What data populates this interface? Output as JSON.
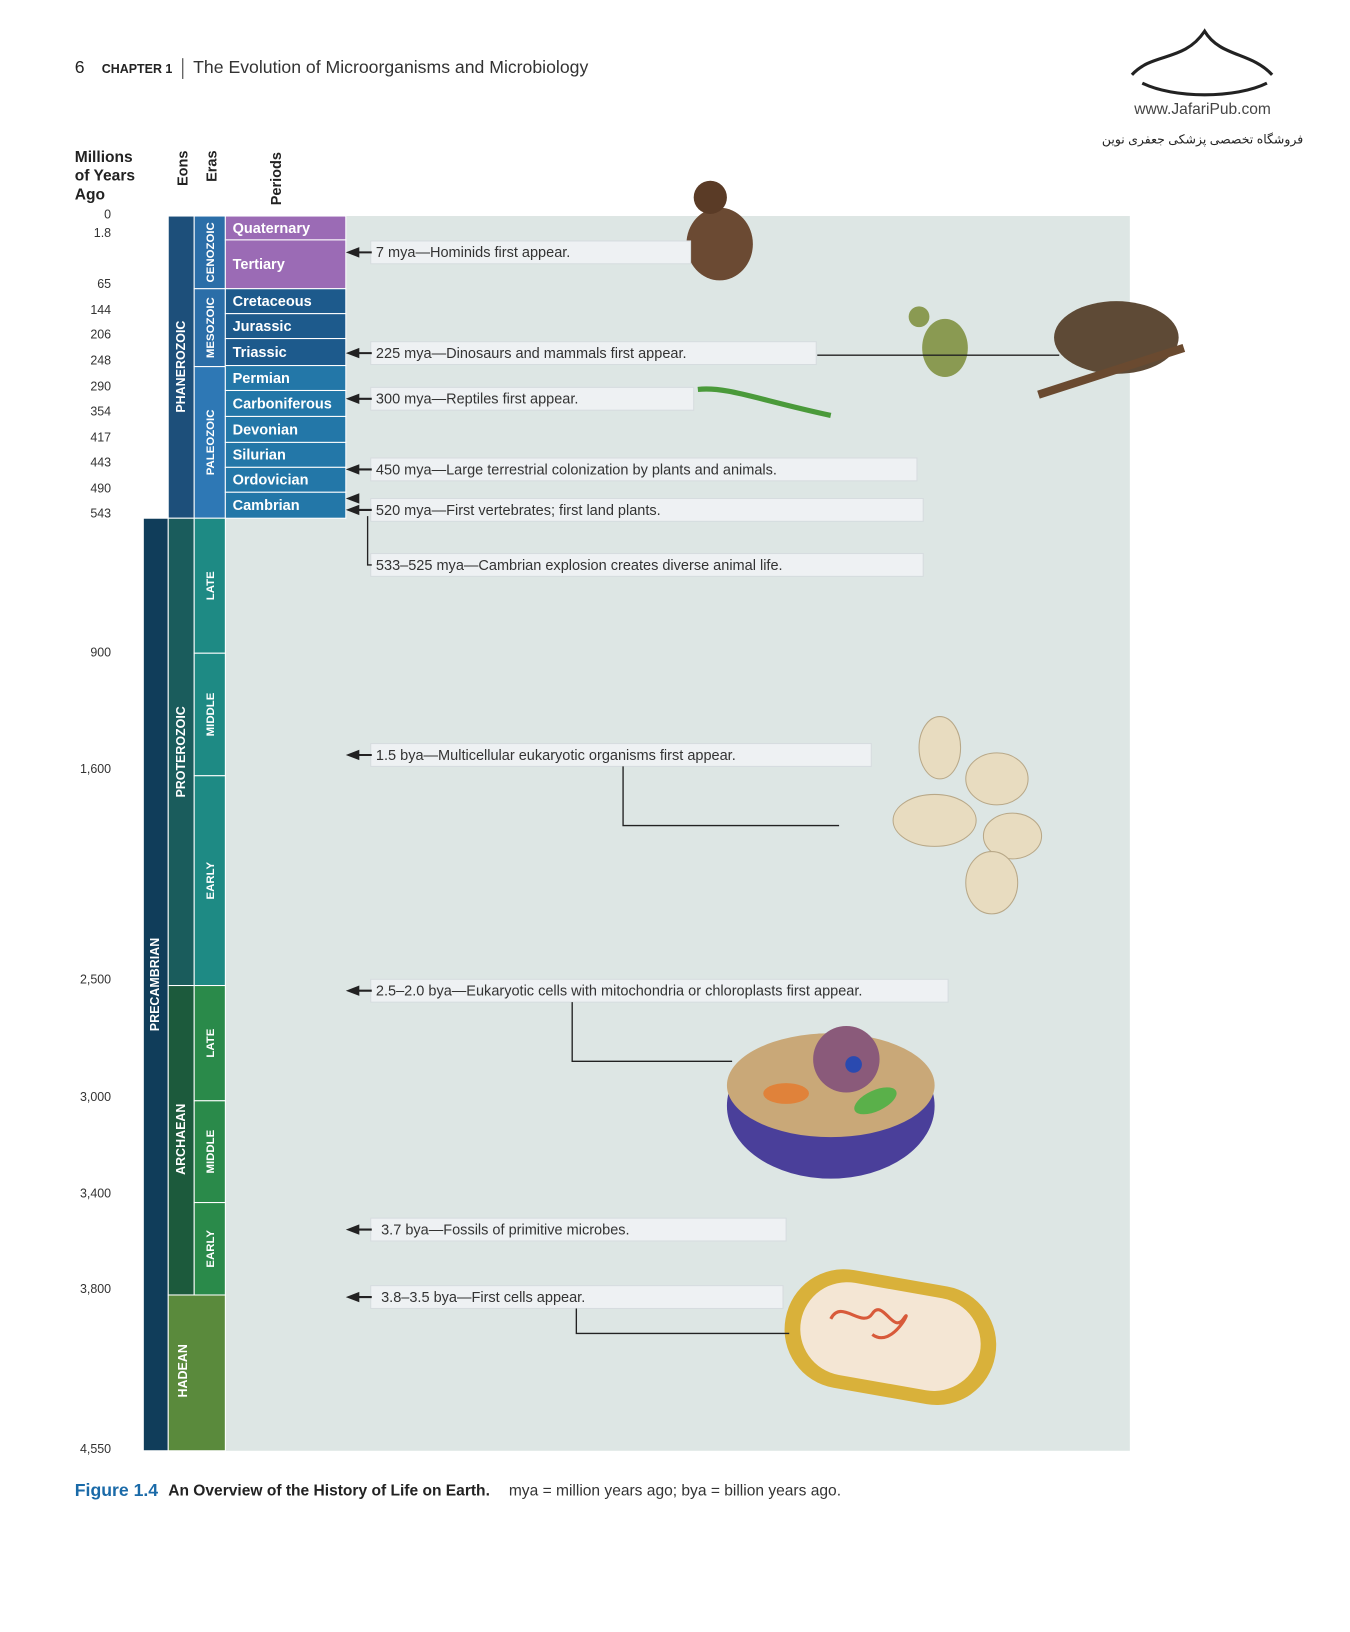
{
  "header": {
    "page_number": "6",
    "chapter_label": "CHAPTER 1",
    "chapter_title": "The Evolution of Microorganisms and Microbiology"
  },
  "watermark": {
    "url": "www.JafariPub.com",
    "store": "فروشگاه تخصصی پزشکی جعفری نوین"
  },
  "columns": {
    "time_label_lines": [
      "Millions",
      "of Years",
      "Ago"
    ],
    "eons": "Eons",
    "eras": "Eras",
    "periods": "Periods"
  },
  "time_labels": [
    "0",
    "1.8",
    "65",
    "144",
    "206",
    "248",
    "290",
    "354",
    "417",
    "443",
    "490",
    "543",
    "900",
    "1,600",
    "2,500",
    "3,000",
    "3,400",
    "3,800",
    "4,550"
  ],
  "eons": [
    "PHANEROZOIC",
    "PRECAMBRIAN",
    "PROTEROZOIC",
    "ARCHAEAN",
    "HADEAN"
  ],
  "eras": [
    "CENOZOIC",
    "MESOZOIC",
    "PALEOZOIC",
    "LATE",
    "MIDDLE",
    "EARLY",
    "LATE",
    "MIDDLE",
    "EARLY"
  ],
  "periods": [
    "Quaternary",
    "Tertiary",
    "Cretaceous",
    "Jurassic",
    "Triassic",
    "Permian",
    "Carboniferous",
    "Devonian",
    "Silurian",
    "Ordovician",
    "Cambrian"
  ],
  "events": [
    "7 mya—Hominids first appear.",
    "225 mya—Dinosaurs and mammals first appear.",
    "300 mya—Reptiles first appear.",
    "450 mya—Large terrestrial colonization by plants and animals.",
    "520 mya—First vertebrates; first land plants.",
    "533–525 mya—Cambrian explosion creates diverse animal life.",
    "1.5 bya—Multicellular eukaryotic organisms first appear.",
    "2.5–2.0 bya—Eukaryotic cells with mitochondria or chloroplasts first appear.",
    "3.7 bya—Fossils of primitive microbes.",
    "3.8–3.5 bya—First cells appear."
  ],
  "caption": {
    "figure": "Figure 1.4",
    "title": "An Overview of the History of Life on Earth.",
    "note": "mya = million years ago; bya = billion years ago."
  }
}
